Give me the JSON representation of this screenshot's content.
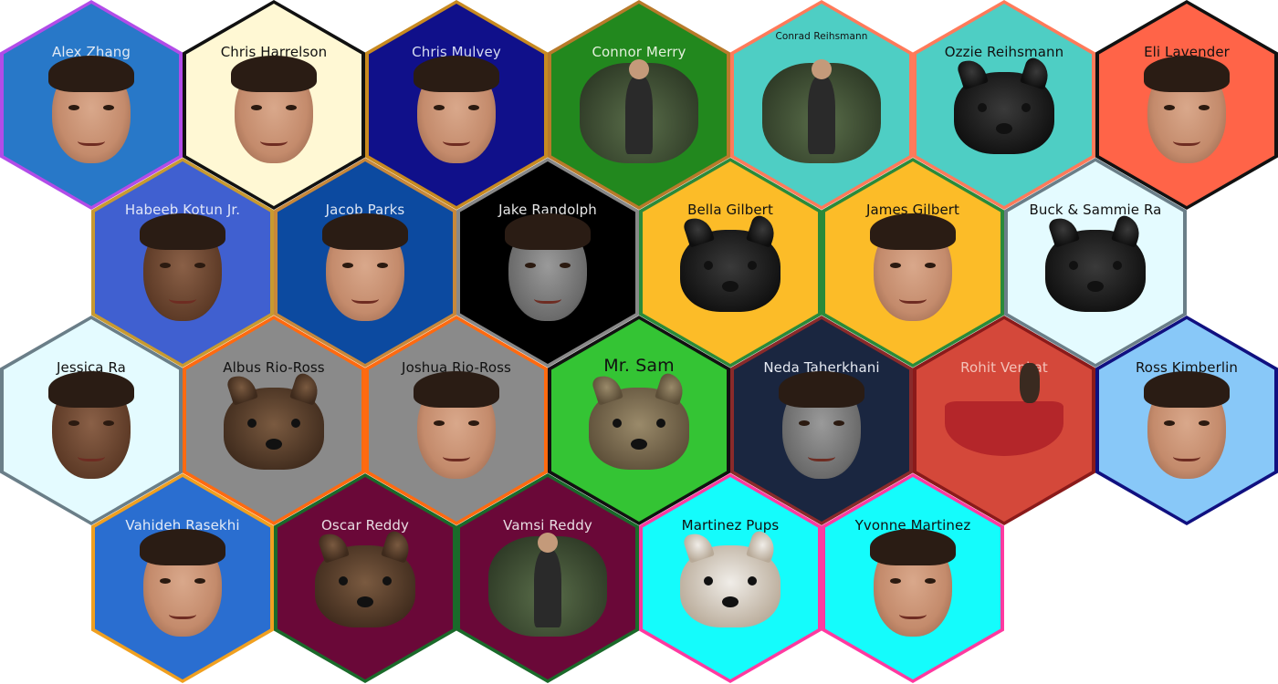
{
  "tiles": [
    {
      "name": "Alex Zhang",
      "bg": "#2878c8",
      "border": "#b24ce8",
      "text": "#dfe8f4",
      "photo": "face",
      "tone": ""
    },
    {
      "name": "Chris Harrelson",
      "bg": "#fff8d4",
      "border": "#111111",
      "text": "#111111",
      "photo": "face",
      "tone": ""
    },
    {
      "name": "Chris Mulvey",
      "bg": "#10108a",
      "border": "#c88a20",
      "text": "#d6dcf0",
      "photo": "face",
      "tone": ""
    },
    {
      "name": "Connor Merry",
      "bg": "#22881e",
      "border": "#b87a2a",
      "text": "#e3f0dc",
      "photo": "scene",
      "tone": ""
    },
    {
      "name": "Conrad Reihsmann",
      "bg": "#4ecec4",
      "border": "#ff7a5a",
      "text": "#111111",
      "photo": "scene",
      "tone": "",
      "small": true
    },
    {
      "name": "Ozzie Reihsmann",
      "bg": "#4ecec4",
      "border": "#ff7a5a",
      "text": "#111111",
      "photo": "animal",
      "tone": "black"
    },
    {
      "name": "Eli Lavender",
      "bg": "#ff6448",
      "border": "#111111",
      "text": "#111111",
      "photo": "face",
      "tone": ""
    },
    {
      "name": "Habeeb Kotun Jr.",
      "bg": "#4060d0",
      "border": "#c89a30",
      "text": "#e0e6f8",
      "photo": "face",
      "tone": "dark"
    },
    {
      "name": "Jacob Parks",
      "bg": "#0c4aa0",
      "border": "#c8883a",
      "text": "#dde6f4",
      "photo": "face",
      "tone": ""
    },
    {
      "name": "Jake Randolph",
      "bg": "#000000",
      "border": "#888888",
      "text": "#e6e6e6",
      "photo": "face",
      "tone": "gray"
    },
    {
      "name": "Bella Gilbert",
      "bg": "#fcbc28",
      "border": "#2a8a3a",
      "text": "#111111",
      "photo": "animal",
      "tone": "black"
    },
    {
      "name": "James Gilbert",
      "bg": "#fcbc28",
      "border": "#2a8a3a",
      "text": "#111111",
      "photo": "face",
      "tone": ""
    },
    {
      "name": "Buck & Sammie Ra",
      "bg": "#e4fbff",
      "border": "#6a7e88",
      "text": "#111111",
      "photo": "animal",
      "tone": "black"
    },
    {
      "name": "Jessica Ra",
      "bg": "#e4fbff",
      "border": "#6a7e88",
      "text": "#111111",
      "photo": "face",
      "tone": "dark"
    },
    {
      "name": "Albus Rio-Ross",
      "bg": "#8a8a8a",
      "border": "#ff6a10",
      "text": "#111111",
      "photo": "animal",
      "tone": ""
    },
    {
      "name": "Joshua Rio-Ross",
      "bg": "#8a8a8a",
      "border": "#ff6a10",
      "text": "#111111",
      "photo": "face",
      "tone": ""
    },
    {
      "name": "Mr. Sam",
      "bg": "#34c434",
      "border": "#111111",
      "text": "#111111",
      "photo": "animal",
      "tone": "cat",
      "large": true
    },
    {
      "name": "Neda Taherkhani",
      "bg": "#1a2640",
      "border": "#8a2a2a",
      "text": "#e6eaf2",
      "photo": "face",
      "tone": "gray"
    },
    {
      "name": "Rohit Venkat",
      "bg": "#d4483a",
      "border": "#8a1a1a",
      "text": "#f3c2b8",
      "photo": "canoe",
      "tone": ""
    },
    {
      "name": "Ross Kimberlin",
      "bg": "#88c8f8",
      "border": "#101080",
      "text": "#111111",
      "photo": "face",
      "tone": ""
    },
    {
      "name": "Vahideh Rasekhi",
      "bg": "#2a6ed0",
      "border": "#f0a020",
      "text": "#e2eaf6",
      "photo": "face",
      "tone": ""
    },
    {
      "name": "Oscar Reddy",
      "bg": "#6a0838",
      "border": "#1a6a2a",
      "text": "#e8dce2",
      "photo": "animal",
      "tone": ""
    },
    {
      "name": "Vamsi Reddy",
      "bg": "#6a0838",
      "border": "#1a6a2a",
      "text": "#e8dce2",
      "photo": "scene",
      "tone": ""
    },
    {
      "name": "Martinez Pups",
      "bg": "#14fcfc",
      "border": "#ff3aa0",
      "text": "#111111",
      "photo": "animal",
      "tone": "white"
    },
    {
      "name": "Yvonne Martinez",
      "bg": "#14fcfc",
      "border": "#ff3aa0",
      "text": "#111111",
      "photo": "face",
      "tone": ""
    }
  ]
}
